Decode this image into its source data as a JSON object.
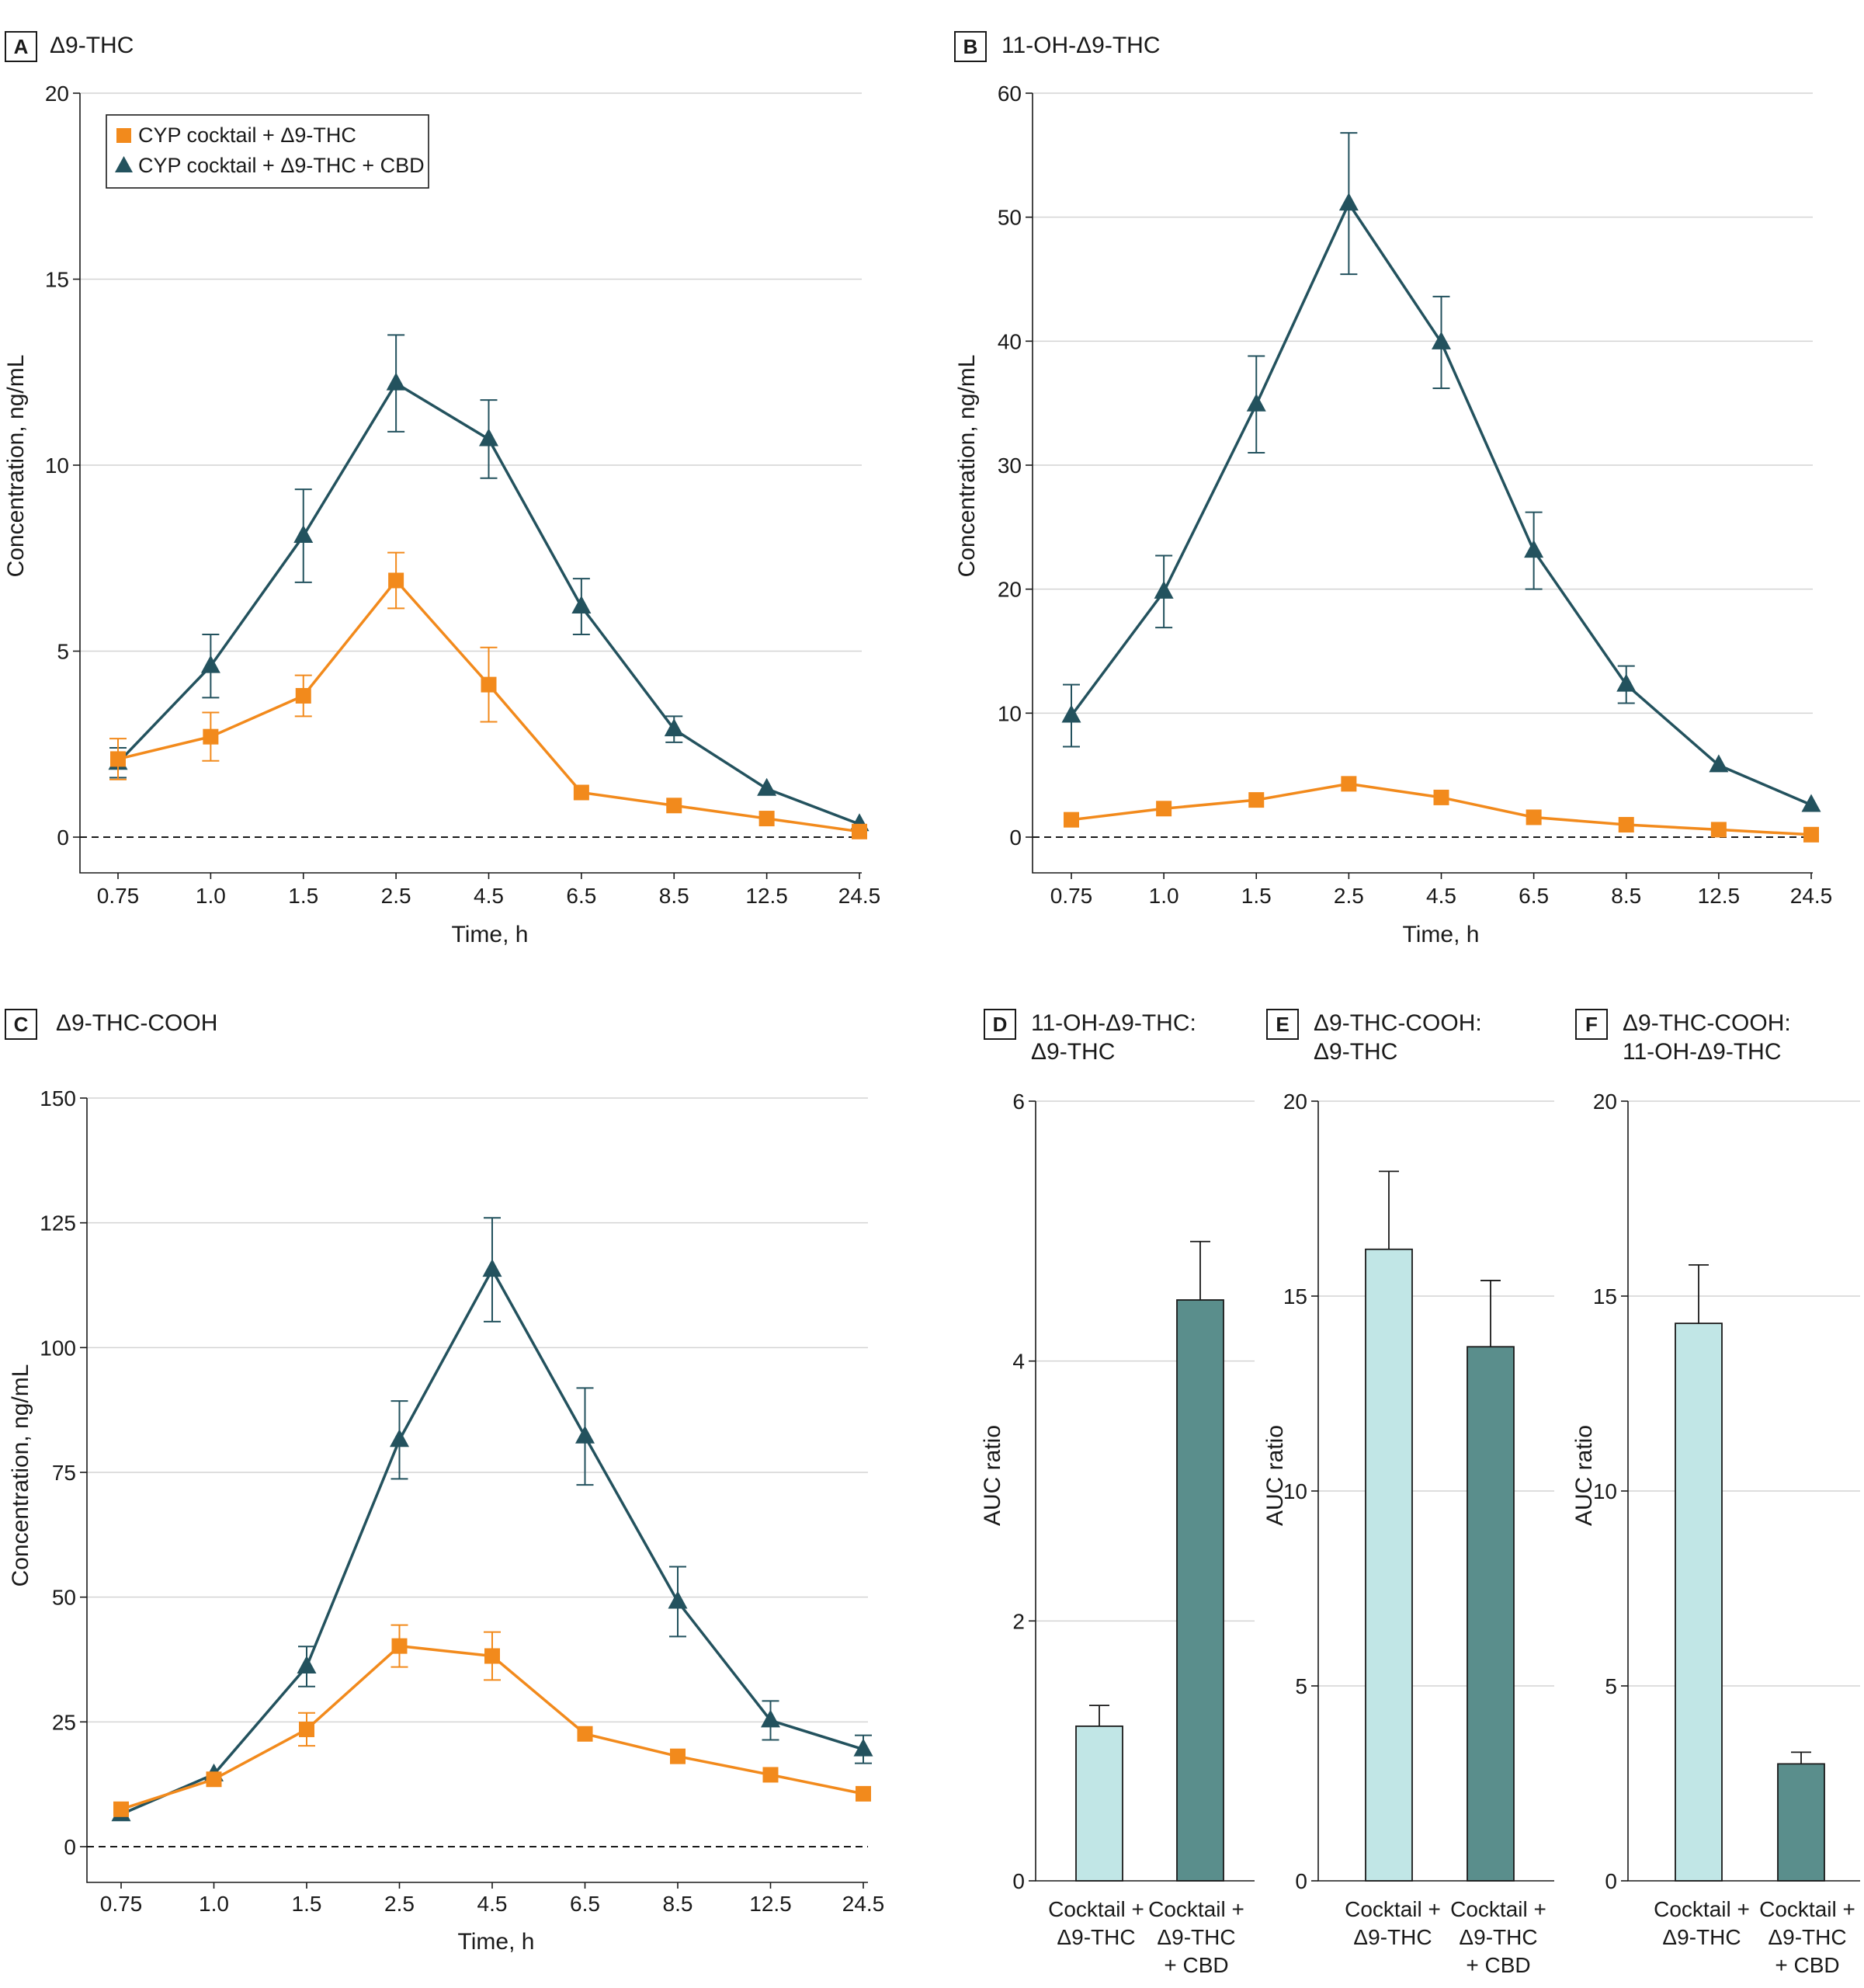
{
  "colors": {
    "orange": "#f28a1c",
    "teal": "#23525e",
    "light_bar": "#c1e6e6",
    "dark_bar": "#5a8e8c"
  },
  "legend": {
    "item1": "CYP cocktail + Δ9-THC",
    "item2": "CYP cocktail + Δ9-THC + CBD",
    "item1_icon": "orange-square-marker",
    "item2_icon": "teal-triangle-marker"
  },
  "chart_data": [
    {
      "id": "A",
      "type": "line",
      "title": "Δ9-THC",
      "categories": [
        "0.75",
        "1.0",
        "1.5",
        "2.5",
        "4.5",
        "6.5",
        "8.5",
        "12.5",
        "24.5"
      ],
      "xlabel": "Time, h",
      "ylabel": "Concentration, ng/mL",
      "ylim": [
        0,
        20
      ],
      "yticks": [
        "0",
        "5",
        "10",
        "15",
        "20"
      ],
      "series": [
        {
          "name": "CYP cocktail + Δ9-THC",
          "marker": "square",
          "values": [
            2.1,
            2.7,
            3.8,
            6.9,
            4.1,
            1.2,
            0.85,
            0.5,
            0.15
          ],
          "err": [
            0.55,
            0.65,
            0.55,
            0.75,
            1.0,
            0,
            0,
            0,
            0
          ]
        },
        {
          "name": "CYP cocktail + Δ9-THC + CBD",
          "marker": "triangle",
          "values": [
            2.0,
            4.6,
            8.1,
            12.2,
            10.7,
            6.2,
            2.9,
            1.3,
            0.35
          ],
          "err": [
            0.4,
            0.85,
            1.25,
            1.3,
            1.05,
            0.75,
            0.35,
            0,
            0
          ]
        }
      ]
    },
    {
      "id": "B",
      "type": "line",
      "title": "11-OH-Δ9-THC",
      "categories": [
        "0.75",
        "1.0",
        "1.5",
        "2.5",
        "4.5",
        "6.5",
        "8.5",
        "12.5",
        "24.5"
      ],
      "xlabel": "Time, h",
      "ylabel": "Concentration, ng/mL",
      "ylim": [
        0,
        60
      ],
      "yticks": [
        "0",
        "10",
        "20",
        "30",
        "40",
        "50",
        "60"
      ],
      "series": [
        {
          "name": "CYP cocktail + Δ9-THC",
          "marker": "square",
          "values": [
            1.4,
            2.3,
            3.0,
            4.3,
            3.2,
            1.6,
            1.0,
            0.6,
            0.2
          ],
          "err": [
            0,
            0,
            0,
            0,
            0,
            0,
            0,
            0,
            0
          ]
        },
        {
          "name": "CYP cocktail + Δ9-THC + CBD",
          "marker": "triangle",
          "values": [
            9.8,
            19.8,
            34.9,
            51.1,
            39.9,
            23.1,
            12.3,
            5.8,
            2.6
          ],
          "err": [
            2.5,
            2.9,
            3.9,
            5.7,
            3.7,
            3.1,
            1.5,
            0,
            0
          ]
        }
      ]
    },
    {
      "id": "C",
      "type": "line",
      "title": "Δ9-THC-COOH",
      "categories": [
        "0.75",
        "1.0",
        "1.5",
        "2.5",
        "4.5",
        "6.5",
        "8.5",
        "12.5",
        "24.5"
      ],
      "xlabel": "Time, h",
      "ylabel": "Concentration, ng/mL",
      "ylim": [
        0,
        150
      ],
      "yticks": [
        "0",
        "25",
        "50",
        "75",
        "100",
        "125",
        "150"
      ],
      "series": [
        {
          "name": "CYP cocktail + Δ9-THC",
          "marker": "square",
          "values": [
            7.5,
            13.5,
            23.5,
            40.2,
            38.2,
            22.6,
            18.1,
            14.4,
            10.6
          ],
          "err": [
            0,
            0,
            3.3,
            4.2,
            4.8,
            0,
            0,
            0,
            0
          ]
        },
        {
          "name": "CYP cocktail + Δ9-THC + CBD",
          "marker": "triangle",
          "values": [
            6.5,
            14.5,
            36.1,
            81.5,
            115.6,
            82.2,
            49.1,
            25.3,
            19.5
          ],
          "err": [
            0,
            0,
            4.0,
            7.8,
            10.4,
            9.7,
            7.0,
            3.9,
            2.8
          ]
        }
      ]
    },
    {
      "id": "D",
      "type": "bar",
      "title": "11-OH-Δ9-THC:",
      "title2": "Δ9-THC",
      "ylabel": "AUC ratio",
      "ylim": [
        0,
        6
      ],
      "yticks": [
        "0",
        "2",
        "4",
        "6"
      ],
      "categories": [
        [
          "Cocktail +",
          "Δ9-THC"
        ],
        [
          "Cocktail +",
          "Δ9-THC",
          "+ CBD"
        ]
      ],
      "values": [
        1.19,
        4.47
      ],
      "err": [
        0.16,
        0.45
      ]
    },
    {
      "id": "E",
      "type": "bar",
      "title": "Δ9-THC-COOH:",
      "title2": "Δ9-THC",
      "ylabel": "AUC ratio",
      "ylim": [
        0,
        20
      ],
      "yticks": [
        "0",
        "5",
        "10",
        "15",
        "20"
      ],
      "categories": [
        [
          "Cocktail +",
          "Δ9-THC"
        ],
        [
          "Cocktail +",
          "Δ9-THC",
          "+ CBD"
        ]
      ],
      "values": [
        16.2,
        13.7
      ],
      "err": [
        2.0,
        1.7
      ]
    },
    {
      "id": "F",
      "type": "bar",
      "title": "Δ9-THC-COOH:",
      "title2": "11-OH-Δ9-THC",
      "ylabel": "AUC ratio",
      "ylim": [
        0,
        20
      ],
      "yticks": [
        "0",
        "5",
        "10",
        "15",
        "20"
      ],
      "categories": [
        [
          "Cocktail +",
          "Δ9-THC"
        ],
        [
          "Cocktail +",
          "Δ9-THC",
          "+ CBD"
        ]
      ],
      "values": [
        14.3,
        3.0
      ],
      "err": [
        1.5,
        0.3
      ]
    }
  ]
}
